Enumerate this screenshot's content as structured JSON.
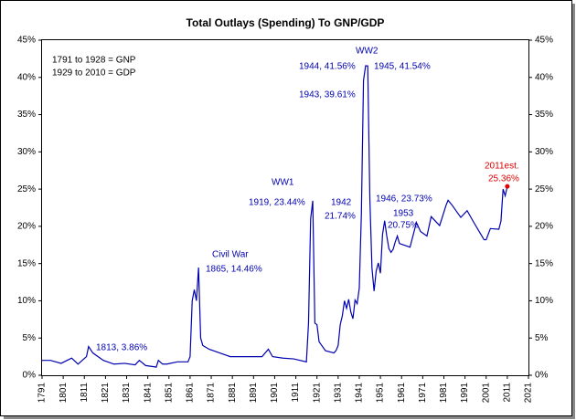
{
  "chart_data": {
    "type": "line",
    "title": "Total Outlays (Spending) To GNP/GDP",
    "xlim": [
      1791,
      2021
    ],
    "xticks": [
      1791,
      1801,
      1811,
      1821,
      1831,
      1841,
      1851,
      1861,
      1871,
      1881,
      1891,
      1901,
      1911,
      1921,
      1931,
      1941,
      1951,
      1961,
      1971,
      1981,
      1991,
      2001,
      2011,
      2021
    ],
    "ylim": [
      0,
      45
    ],
    "yticks": [
      {
        "value": 0,
        "label": "0%"
      },
      {
        "value": 5,
        "label": "5%"
      },
      {
        "value": 10,
        "label": "10%"
      },
      {
        "value": 15,
        "label": "15%"
      },
      {
        "value": 20,
        "label": "20%"
      },
      {
        "value": 25,
        "label": "25%"
      },
      {
        "value": 30,
        "label": "30%"
      },
      {
        "value": 35,
        "label": "35%"
      },
      {
        "value": 40,
        "label": "40%"
      },
      {
        "value": 45,
        "label": "45%"
      }
    ],
    "y2lim": [
      0,
      45
    ],
    "y2ticks": [
      {
        "value": 0,
        "label": "0%"
      },
      {
        "value": 5,
        "label": "5%"
      },
      {
        "value": 10,
        "label": "10%"
      },
      {
        "value": 15,
        "label": "15%"
      },
      {
        "value": 20,
        "label": "20%"
      },
      {
        "value": 25,
        "label": "25%"
      },
      {
        "value": 30,
        "label": "30%"
      },
      {
        "value": 35,
        "label": "35%"
      },
      {
        "value": 40,
        "label": "40%"
      },
      {
        "value": 45,
        "label": "45%"
      }
    ],
    "grid": false,
    "series": [
      {
        "color": "#0000b0",
        "marker_color": "#e00000",
        "x": [
          1791,
          1795,
          1800,
          1805,
          1808,
          1812,
          1813,
          1815,
          1820,
          1825,
          1830,
          1835,
          1837,
          1840,
          1845,
          1846,
          1848,
          1850,
          1855,
          1860,
          1861,
          1862,
          1863,
          1864,
          1865,
          1866,
          1867,
          1870,
          1875,
          1880,
          1885,
          1890,
          1895,
          1898,
          1900,
          1905,
          1910,
          1916,
          1917,
          1918,
          1919,
          1920,
          1921,
          1922,
          1925,
          1929,
          1930,
          1931,
          1932,
          1933,
          1934,
          1935,
          1936,
          1937,
          1938,
          1939,
          1940,
          1941,
          1942,
          1943,
          1944,
          1945,
          1946,
          1947,
          1948,
          1949,
          1950,
          1951,
          1952,
          1953,
          1954,
          1955,
          1956,
          1957,
          1958,
          1959,
          1960,
          1965,
          1968,
          1970,
          1973,
          1975,
          1979,
          1982,
          1983,
          1985,
          1989,
          1992,
          1995,
          2000,
          2001,
          2003,
          2007,
          2008,
          2009,
          2010,
          2011
        ],
        "values": [
          2.0,
          2.0,
          1.6,
          2.3,
          1.5,
          2.5,
          3.86,
          3.0,
          2.0,
          1.5,
          1.6,
          1.4,
          2.0,
          1.3,
          1.1,
          2.0,
          1.5,
          1.5,
          1.8,
          1.8,
          2.5,
          10.0,
          11.5,
          10.0,
          14.46,
          5.0,
          4.0,
          3.5,
          3.0,
          2.5,
          2.5,
          2.5,
          2.5,
          3.5,
          2.5,
          2.3,
          2.2,
          1.8,
          7.0,
          21.0,
          23.44,
          7.0,
          6.8,
          4.5,
          3.3,
          3.0,
          3.3,
          4.0,
          6.8,
          8.0,
          10.0,
          9.0,
          10.2,
          8.5,
          7.6,
          10.1,
          9.6,
          11.7,
          21.74,
          39.61,
          41.56,
          41.54,
          23.73,
          14.4,
          11.3,
          14.0,
          15.1,
          13.7,
          18.9,
          20.75,
          18.7,
          17.0,
          16.5,
          16.9,
          17.9,
          18.7,
          17.7,
          17.2,
          20.5,
          19.3,
          18.7,
          21.3,
          20.1,
          22.8,
          23.5,
          22.8,
          21.2,
          22.1,
          20.6,
          18.2,
          18.2,
          19.7,
          19.6,
          20.7,
          25.0,
          24.1,
          25.36
        ]
      }
    ],
    "annotations": [
      {
        "text": "1791 to 1928 = GNP",
        "color": "#000000"
      },
      {
        "text": "1929 to 2010 = GDP",
        "color": "#000000"
      },
      {
        "text": "1813, 3.86%",
        "color": "#0000b0"
      },
      {
        "text": "Civil War",
        "color": "#0000b0"
      },
      {
        "text": "1865, 14.46%",
        "color": "#0000b0"
      },
      {
        "text": "WW1",
        "color": "#0000b0"
      },
      {
        "text": "1919, 23.44%",
        "color": "#0000b0"
      },
      {
        "text": "1942",
        "color": "#0000b0"
      },
      {
        "text": "21.74%",
        "color": "#0000b0"
      },
      {
        "text": "WW2",
        "color": "#0000b0"
      },
      {
        "text": "1944, 41.56%",
        "color": "#0000b0"
      },
      {
        "text": "1943, 39.61%",
        "color": "#0000b0"
      },
      {
        "text": "1945, 41.54%",
        "color": "#0000b0"
      },
      {
        "text": "1946, 23.73%",
        "color": "#0000b0"
      },
      {
        "text": "1953",
        "color": "#0000b0"
      },
      {
        "text": "20.75%",
        "color": "#0000b0"
      },
      {
        "text": "2011est.",
        "color": "#e00000"
      },
      {
        "text": "25.36%",
        "color": "#e00000"
      }
    ]
  }
}
